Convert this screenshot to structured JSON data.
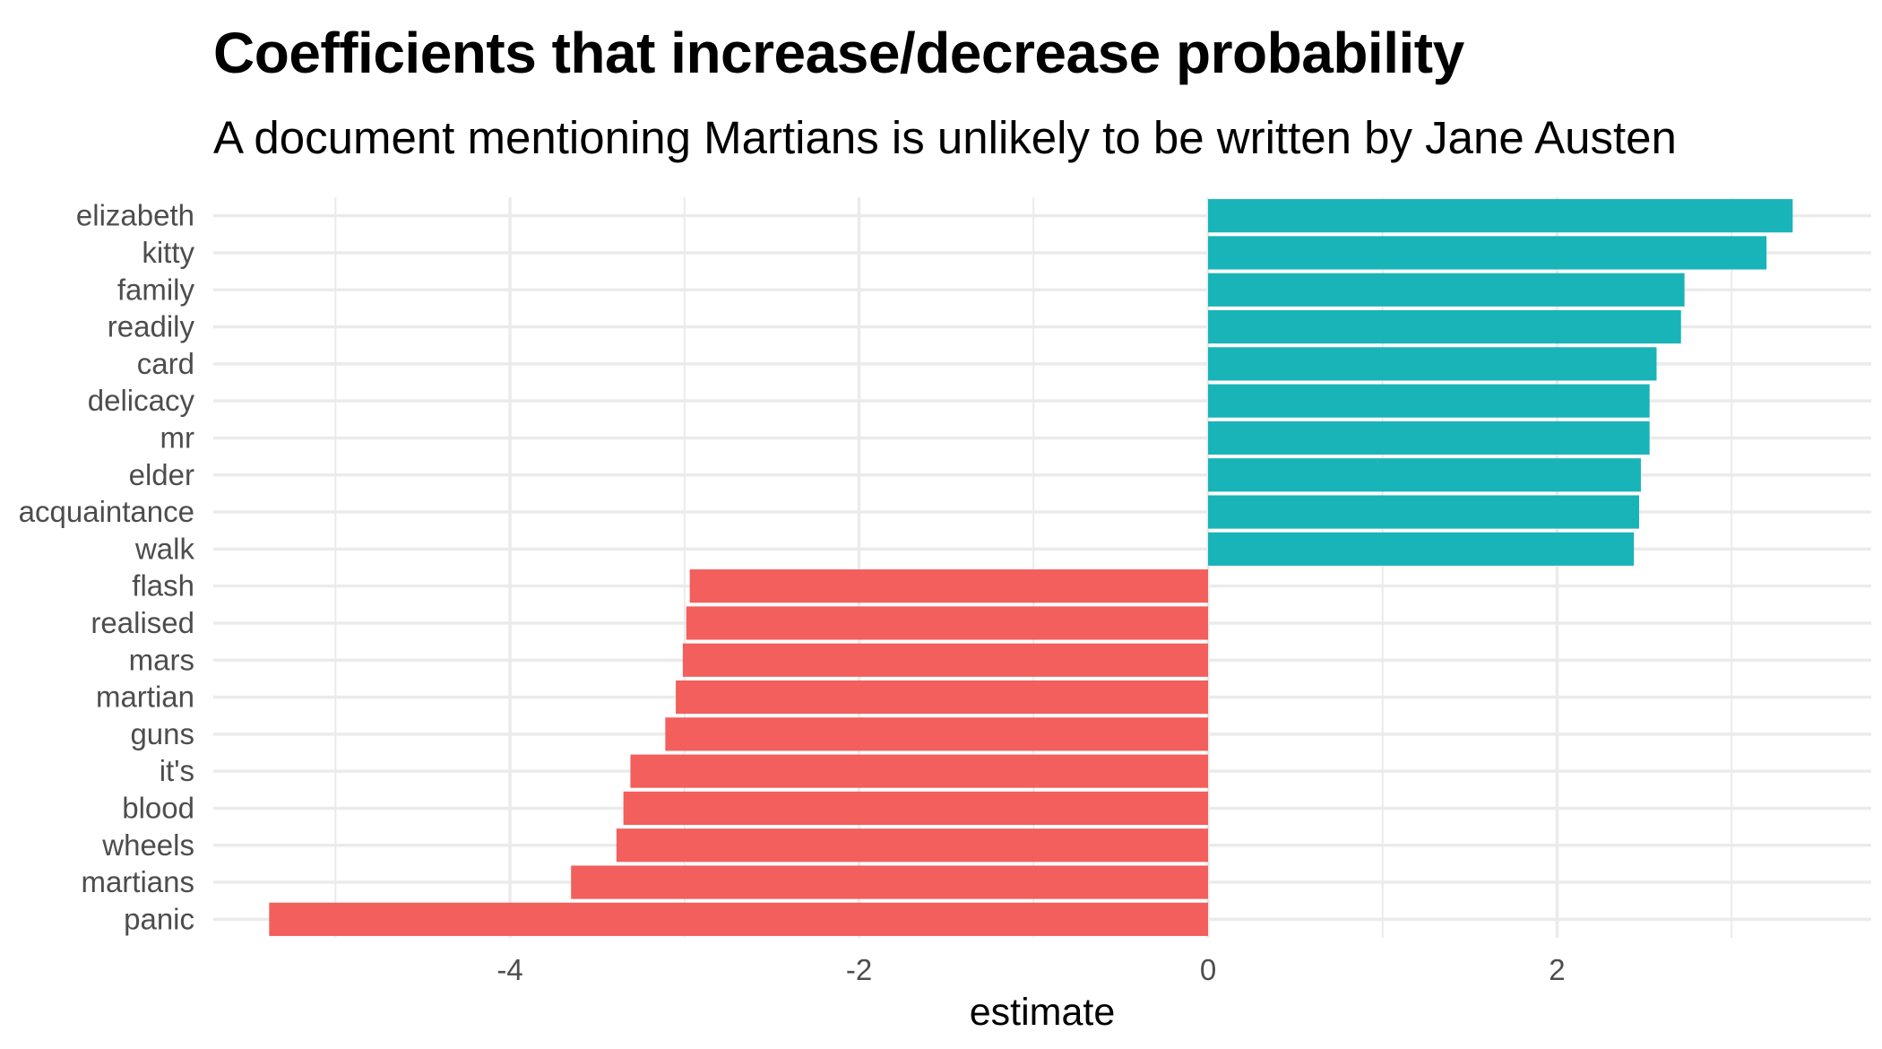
{
  "chart_data": {
    "type": "bar",
    "orientation": "horizontal",
    "title": "Coefficients that increase/decrease probability",
    "subtitle": "A document mentioning Martians is unlikely to be written by Jane Austen",
    "xlabel": "estimate",
    "ylabel": "",
    "xlim": [
      -5.7,
      3.8
    ],
    "xticks": [
      -4,
      -2,
      0,
      2
    ],
    "xtick_labels": [
      "-4",
      "-2",
      "0",
      "2"
    ],
    "grid": true,
    "legend": "none",
    "colors": {
      "positive": "#19b4b8",
      "negative": "#f25f5c",
      "grid": "#ebebeb"
    },
    "categories": [
      "elizabeth",
      "kitty",
      "family",
      "readily",
      "card",
      "delicacy",
      "mr",
      "elder",
      "acquaintance",
      "walk",
      "flash",
      "realised",
      "mars",
      "martian",
      "guns",
      "it's",
      "blood",
      "wheels",
      "martians",
      "panic"
    ],
    "values": [
      3.35,
      3.2,
      2.73,
      2.71,
      2.57,
      2.53,
      2.53,
      2.48,
      2.47,
      2.44,
      -2.97,
      -2.99,
      -3.01,
      -3.05,
      -3.11,
      -3.31,
      -3.35,
      -3.39,
      -3.65,
      -5.38
    ]
  }
}
